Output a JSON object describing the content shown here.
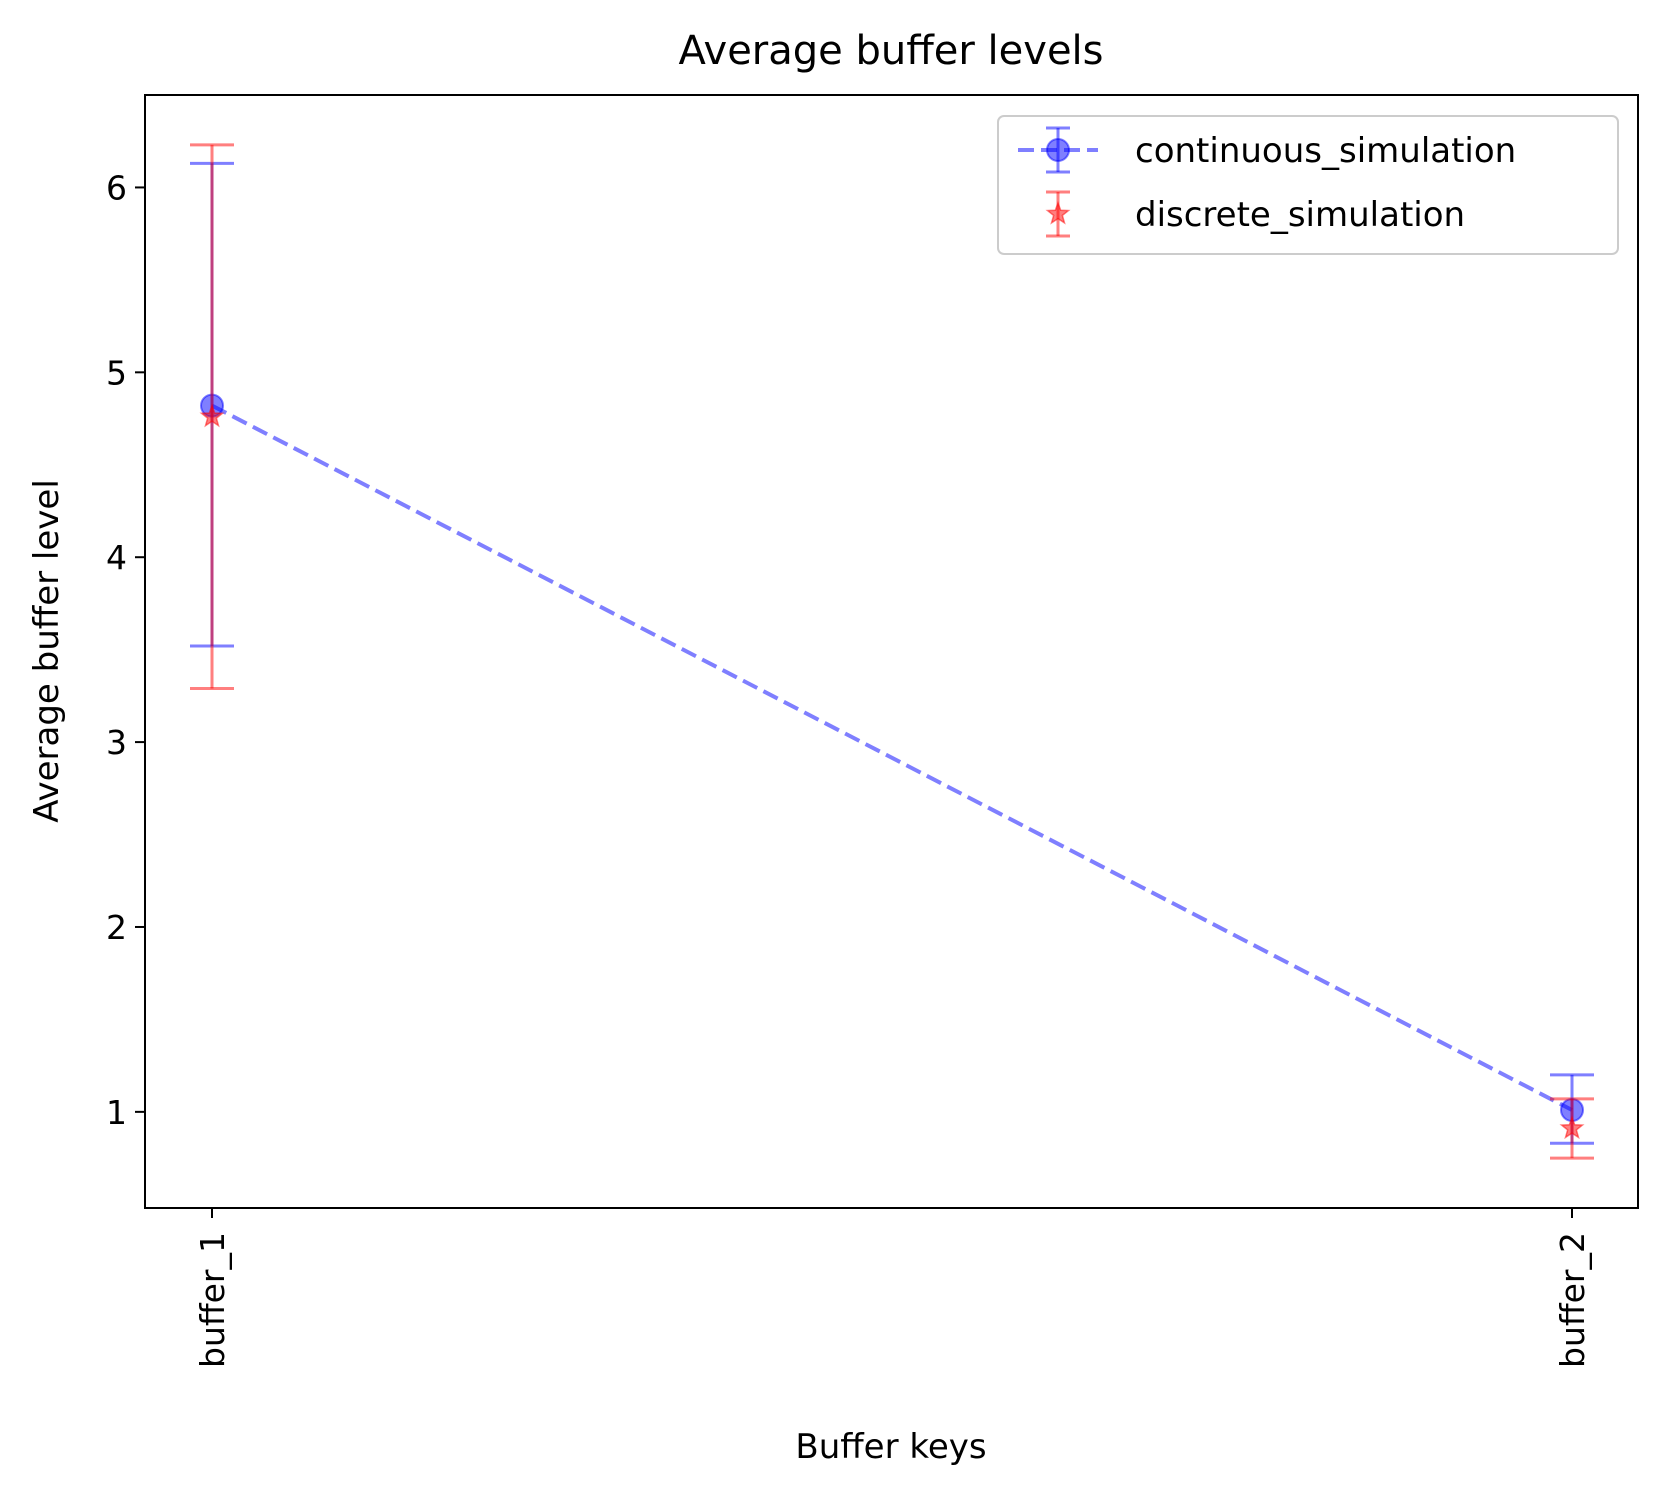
{
  "chart_data": {
    "type": "line",
    "title": "Average buffer levels",
    "xlabel": "Buffer keys",
    "ylabel": "Average buffer level",
    "categories": [
      "buffer_1",
      "buffer_2"
    ],
    "ylim": [
      0.48,
      6.5
    ],
    "yticks": [
      1,
      2,
      3,
      4,
      5,
      6
    ],
    "grid": false,
    "legend_position": "top-right",
    "series": [
      {
        "name": "continuous_simulation",
        "values": [
          4.82,
          1.01
        ],
        "error_low": [
          3.52,
          0.83
        ],
        "error_high": [
          6.13,
          1.2
        ],
        "color": "#0000ff",
        "marker": "circle",
        "line_style": "dashed"
      },
      {
        "name": "discrete_simulation",
        "values": [
          4.76,
          0.91
        ],
        "error_low": [
          3.29,
          0.75
        ],
        "error_high": [
          6.23,
          1.07
        ],
        "color": "#ff0000",
        "marker": "star",
        "line_style": "none"
      }
    ]
  }
}
